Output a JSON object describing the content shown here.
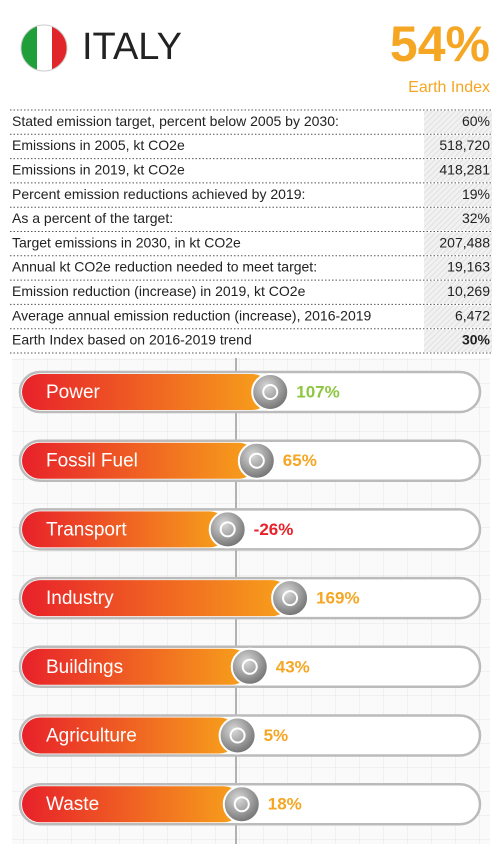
{
  "header": {
    "country": "ITALY",
    "index": "54%",
    "index_label": "Earth Index"
  },
  "table": {
    "rows": [
      [
        "Stated emission target, percent below 2005 by 2030:",
        "60%"
      ],
      [
        "Emissions in 2005, kt CO2e",
        "518,720"
      ],
      [
        "Emissions in 2019, kt CO2e",
        "418,281"
      ],
      [
        "Percent emission reductions achieved by 2019:",
        "19%"
      ],
      [
        "As a percent of the target:",
        "32%"
      ],
      [
        "Target emissions in 2030, in kt CO2e",
        "207,488"
      ],
      [
        "Annual kt CO2e reduction needed to meet target:",
        "19,163"
      ],
      [
        "Emission reduction (increase) in 2019, kt CO2e",
        "10,269"
      ],
      [
        "Average annual emission reduction (increase), 2016-2019",
        "6,472"
      ],
      [
        "Earth Index based on 2016-2019 trend",
        "30%"
      ]
    ]
  },
  "sectors": [
    {
      "name": "Power",
      "value": 107,
      "value_label": "107%",
      "color": "#8dc63f"
    },
    {
      "name": "Fossil Fuel",
      "value": 65,
      "value_label": "65%",
      "color": "#f5a623"
    },
    {
      "name": "Transport",
      "value": -26,
      "value_label": "-26%",
      "color": "#e8212a"
    },
    {
      "name": "Industry",
      "value": 169,
      "value_label": "169%",
      "color": "#f5a623"
    },
    {
      "name": "Buildings",
      "value": 43,
      "value_label": "43%",
      "color": "#f5a623"
    },
    {
      "name": "Agriculture",
      "value": 5,
      "value_label": "5%",
      "color": "#f5a623"
    },
    {
      "name": "Waste",
      "value": 18,
      "value_label": "18%",
      "color": "#f5a623"
    }
  ]
}
